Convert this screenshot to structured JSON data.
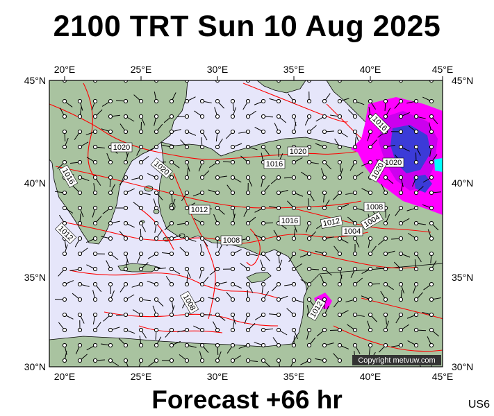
{
  "header": {
    "title": "2100 TRT Sun 10 Aug 2025"
  },
  "footer": {
    "forecast": "Forecast +66 hr",
    "region_code": "US6"
  },
  "map": {
    "lon_labels": [
      "20°E",
      "25°E",
      "30°E",
      "35°E",
      "40°E",
      "45°E"
    ],
    "lat_labels": [
      "45°N",
      "40°N",
      "35°N",
      "30°N"
    ],
    "isobar_labels": [
      "1020",
      "1016",
      "1012",
      "1008",
      "1004",
      "1020",
      "1016",
      "1012",
      "1008",
      "1004",
      "1020",
      "1016",
      "1012",
      "1008",
      "1012",
      "1016",
      "1020",
      "1020",
      "1008",
      "1004"
    ],
    "copyright": "Copyright metvuw.com",
    "colors": {
      "sea": "#e6e6fa",
      "land": "#a9c3a0",
      "isobar": "#ff0000",
      "precip_magenta": "#ff00ff",
      "precip_blue": "#3b3bd8",
      "precip_cyan": "#00ffff"
    }
  }
}
